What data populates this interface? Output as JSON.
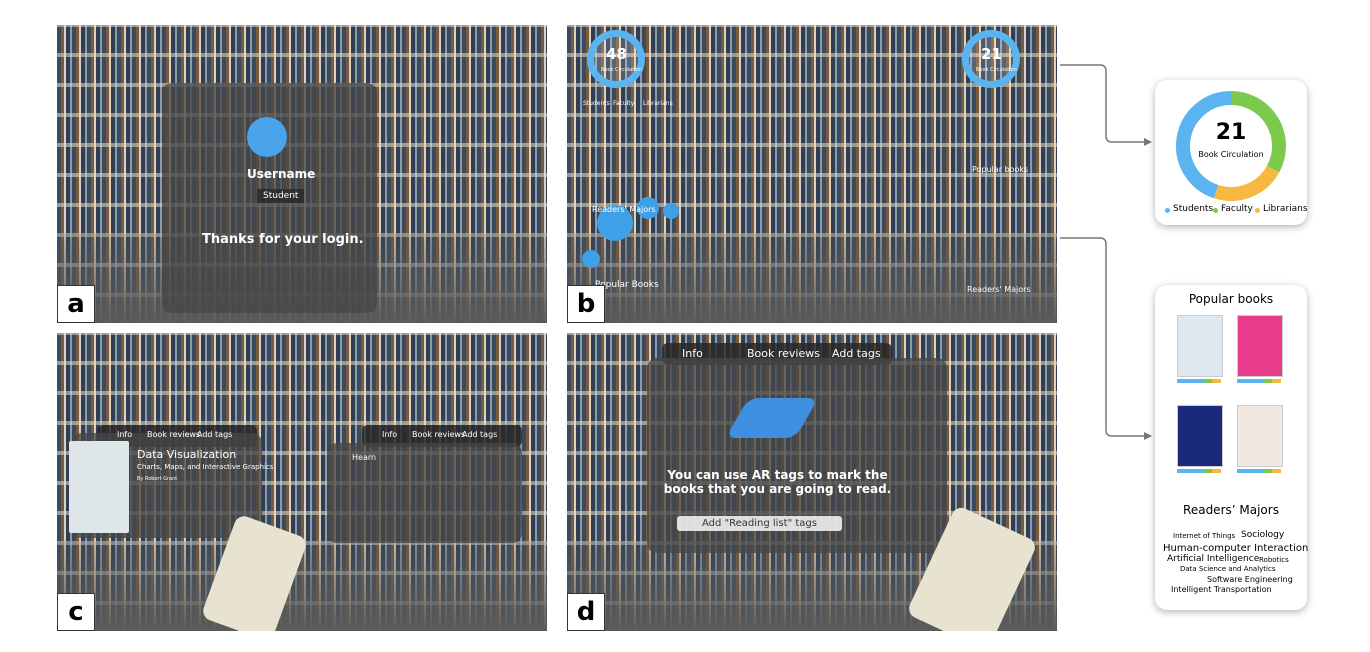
{
  "panels": [
    {
      "label": "a",
      "username": "Username",
      "role": "Student",
      "message": "Thanks for your login."
    },
    {
      "label": "b",
      "left_widget": {
        "count": 48,
        "caption": "Book Circulation",
        "legend": [
          "Students",
          "Faculty",
          "Librarians"
        ],
        "majors_title": "Readers' Majors",
        "books_title": "Popular Books"
      },
      "right_widget": {
        "count": 21,
        "caption": "Book Circulation",
        "books_title": "Popular books",
        "majors_title": "Readers' Majors"
      }
    },
    {
      "label": "c",
      "tabs": [
        "Info",
        "Book reviews",
        "Add tags"
      ],
      "book_title": "Data Visualization",
      "book_subtitle": "Charts, Maps, and Interactive Graphics",
      "author": "By Robert Grant",
      "reviewer": "Hearn"
    },
    {
      "label": "d",
      "tabs": [
        "Info",
        "Book reviews",
        "Add tags"
      ],
      "message": "You can use AR tags to mark the books that you are going to read.",
      "button": "Add \"Reading list\" tags"
    }
  ],
  "circulation_card": {
    "count": 21,
    "caption": "Book Circulation",
    "segments": [
      {
        "name": "Students",
        "color": "#5ab4f0",
        "value": 45
      },
      {
        "name": "Faculty",
        "color": "#7cc94b",
        "value": 33
      },
      {
        "name": "Librarians",
        "color": "#f5b942",
        "value": 22
      }
    ]
  },
  "popular_card": {
    "title": "Popular books",
    "majors_title": "Readers’ Majors",
    "majors": [
      "Internet of Things",
      "Sociology",
      "Human-computer Interaction",
      "Artificial Intelligence",
      "Robotics",
      "Data Science and Analytics",
      "Software Engineering",
      "Intelligent Transportation"
    ]
  }
}
